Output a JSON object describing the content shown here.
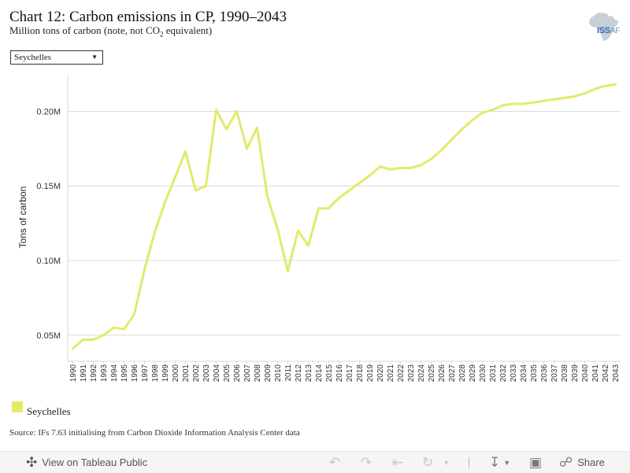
{
  "header": {
    "title": "Chart 12: Carbon emissions in CP, 1990–2043",
    "subtitle_main": "Million tons of carbon (note, not CO",
    "subtitle_sub": "2",
    "subtitle_end": " equivalent)"
  },
  "logo": {
    "text": "ISS",
    "suffix": "AF"
  },
  "filter": {
    "selected": "Seychelles"
  },
  "legend": {
    "label": "Seychelles",
    "color": "#e3ea6b"
  },
  "source": "Source: IFs 7.63 initialising from Carbon Dioxide Information Analysis Center data",
  "toolbar": {
    "view_label": "View on Tableau Public",
    "share_label": "Share"
  },
  "chart_data": {
    "type": "line",
    "title": "",
    "ylabel": "Tons of carbon",
    "xlabel": "",
    "ylim": [
      0.0325,
      0.2245
    ],
    "yticks": [
      0.05,
      0.1,
      0.15,
      0.2
    ],
    "ytick_labels": [
      "0.05M",
      "0.10M",
      "0.15M",
      "0.20M"
    ],
    "grid": "horizontal",
    "x": [
      1990,
      1991,
      1992,
      1993,
      1994,
      1995,
      1996,
      1997,
      1998,
      1999,
      2000,
      2001,
      2002,
      2003,
      2004,
      2005,
      2006,
      2007,
      2008,
      2009,
      2010,
      2011,
      2012,
      2013,
      2014,
      2015,
      2016,
      2017,
      2018,
      2019,
      2020,
      2021,
      2022,
      2023,
      2024,
      2025,
      2026,
      2027,
      2028,
      2029,
      2030,
      2031,
      2032,
      2033,
      2034,
      2035,
      2036,
      2037,
      2038,
      2039,
      2040,
      2041,
      2042,
      2043
    ],
    "series": [
      {
        "name": "Seychelles",
        "color": "#e3ea6b",
        "values": [
          0.041,
          0.047,
          0.047,
          0.05,
          0.055,
          0.054,
          0.064,
          0.094,
          0.119,
          0.139,
          0.156,
          0.173,
          0.147,
          0.15,
          0.201,
          0.188,
          0.2,
          0.175,
          0.189,
          0.143,
          0.121,
          0.093,
          0.12,
          0.11,
          0.135,
          0.135,
          0.142,
          0.147,
          0.152,
          0.157,
          0.163,
          0.161,
          0.162,
          0.162,
          0.164,
          0.168,
          0.174,
          0.181,
          0.188,
          0.194,
          0.199,
          0.201,
          0.204,
          0.205,
          0.205,
          0.206,
          0.207,
          0.208,
          0.209,
          0.21,
          0.212,
          0.215,
          0.217,
          0.218
        ]
      }
    ]
  }
}
